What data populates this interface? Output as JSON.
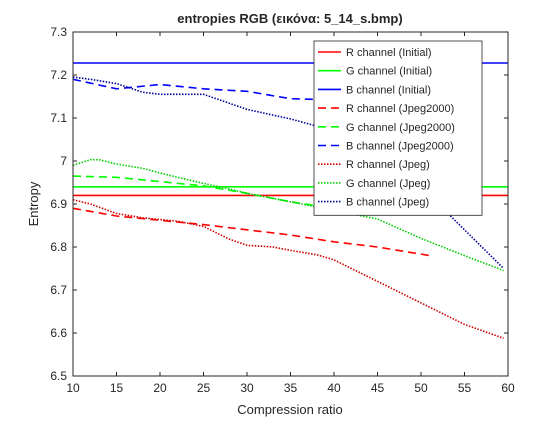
{
  "chart_data": {
    "type": "line",
    "title": "entropies RGB (εικόνα: 5_14_s.bmp)",
    "xlabel": "Compression ratio",
    "ylabel": "Entropy",
    "xlim": [
      10,
      60
    ],
    "ylim": [
      6.5,
      7.3
    ],
    "xticks": [
      10,
      15,
      20,
      25,
      30,
      35,
      40,
      45,
      50,
      55,
      60
    ],
    "yticks": [
      6.5,
      6.6,
      6.7,
      6.8,
      6.9,
      7.0,
      7.1,
      7.2,
      7.3
    ],
    "xtick_labels": [
      "10",
      "15",
      "20",
      "25",
      "30",
      "35",
      "40",
      "45",
      "50",
      "55",
      "60"
    ],
    "ytick_labels": [
      "6.5",
      "6.6",
      "6.7",
      "6.8",
      "6.9",
      "7",
      "7.1",
      "7.2",
      "7.3"
    ],
    "grid": false,
    "legend_position": "top-right",
    "series": [
      {
        "name": "R channel (Initial)",
        "color": "#ff0000",
        "style": "solid",
        "x": [
          10,
          60
        ],
        "y": [
          6.92,
          6.92
        ]
      },
      {
        "name": "G channel (Initial)",
        "color": "#00ff00",
        "style": "solid",
        "x": [
          10,
          60
        ],
        "y": [
          6.94,
          6.94
        ]
      },
      {
        "name": "B channel (Initial)",
        "color": "#0000ff",
        "style": "solid",
        "x": [
          10,
          60
        ],
        "y": [
          7.228,
          7.228
        ]
      },
      {
        "name": "R channel (Jpeg2000)",
        "color": "#ff0000",
        "style": "dashed",
        "x": [
          10,
          15,
          20,
          25,
          30,
          35,
          40,
          45,
          51
        ],
        "y": [
          6.89,
          6.872,
          6.862,
          6.852,
          6.84,
          6.828,
          6.812,
          6.8,
          6.78
        ]
      },
      {
        "name": "G channel (Jpeg2000)",
        "color": "#00ff00",
        "style": "dashed",
        "x": [
          10,
          15,
          20,
          25,
          30,
          35,
          40,
          45,
          51
        ],
        "y": [
          6.965,
          6.962,
          6.952,
          6.942,
          6.925,
          6.905,
          6.89,
          6.882,
          6.882
        ]
      },
      {
        "name": "B channel (Jpeg2000)",
        "color": "#0000ff",
        "style": "dashed",
        "x": [
          10,
          15,
          20,
          25,
          30,
          35,
          40,
          45,
          51
        ],
        "y": [
          7.19,
          7.168,
          7.178,
          7.168,
          7.162,
          7.145,
          7.142,
          7.14,
          7.14
        ]
      },
      {
        "name": "R channel (Jpeg)",
        "color": "#cc0000",
        "style": "dotted",
        "x": [
          10,
          12,
          15,
          18,
          22,
          25,
          28,
          30,
          33,
          35,
          38,
          40,
          45,
          50,
          55,
          59.5
        ],
        "y": [
          6.91,
          6.9,
          6.878,
          6.868,
          6.86,
          6.848,
          6.818,
          6.804,
          6.8,
          6.792,
          6.782,
          6.77,
          6.72,
          6.67,
          6.62,
          6.588
        ]
      },
      {
        "name": "G channel (Jpeg)",
        "color": "#00cc00",
        "style": "dotted",
        "x": [
          10,
          12,
          13,
          15,
          18,
          20,
          22,
          25,
          28,
          30,
          35,
          40,
          45,
          50,
          55,
          59.5
        ],
        "y": [
          6.99,
          7.003,
          7.003,
          6.993,
          6.983,
          6.972,
          6.962,
          6.948,
          6.935,
          6.925,
          6.905,
          6.885,
          6.865,
          6.82,
          6.78,
          6.745
        ]
      },
      {
        "name": "B channel (Jpeg)",
        "color": "#000099",
        "style": "dotted",
        "x": [
          10,
          12,
          15,
          18,
          20,
          25,
          30,
          35,
          40,
          42,
          50,
          55,
          59.5
        ],
        "y": [
          7.195,
          7.19,
          7.18,
          7.16,
          7.155,
          7.155,
          7.12,
          7.098,
          7.07,
          7.06,
          6.94,
          6.84,
          6.75
        ]
      }
    ]
  }
}
